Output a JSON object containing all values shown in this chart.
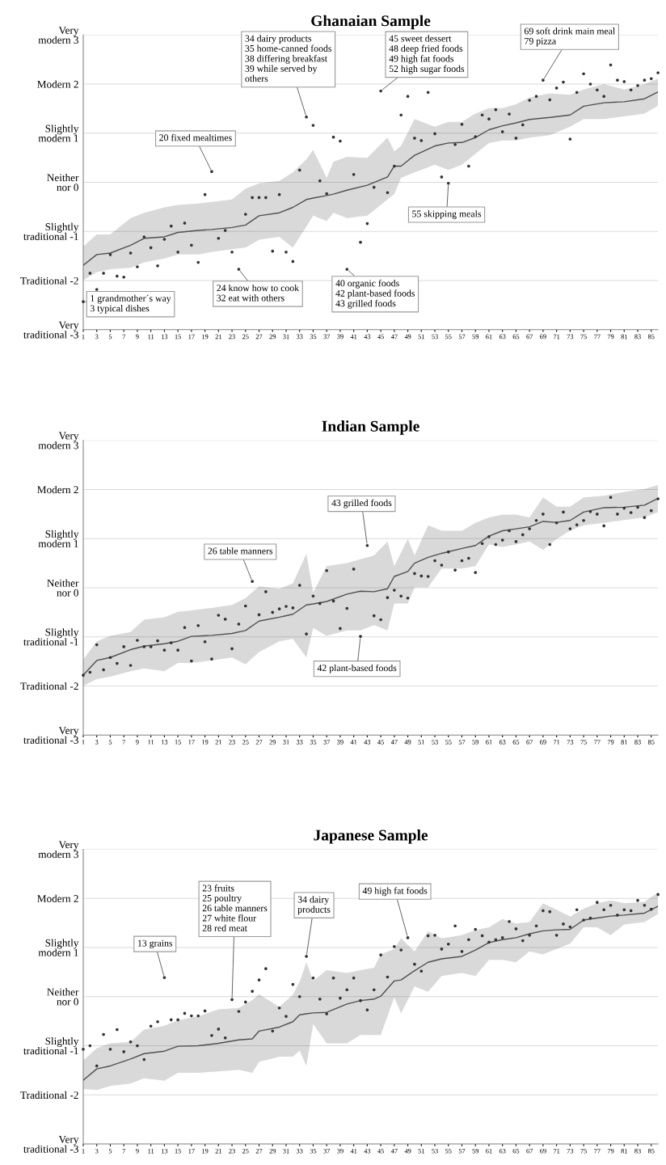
{
  "chart_data": [
    {
      "type": "scatter",
      "title": "Ghanaian Sample",
      "grid": "y",
      "xlim": [
        1,
        86
      ],
      "xticks": [
        1,
        3,
        5,
        7,
        9,
        11,
        13,
        15,
        17,
        19,
        21,
        23,
        25,
        27,
        29,
        31,
        33,
        35,
        37,
        39,
        41,
        43,
        45,
        47,
        49,
        51,
        53,
        55,
        57,
        59,
        61,
        63,
        65,
        67,
        69,
        71,
        73,
        75,
        77,
        79,
        81,
        83,
        85
      ],
      "ylim": [
        -3,
        3
      ],
      "yticks": [
        {
          "value": -3,
          "label": "Very\ntraditional -3"
        },
        {
          "value": -2,
          "label": "Traditional -2"
        },
        {
          "value": -1,
          "label": "Slightly\ntraditional -1"
        },
        {
          "value": 0,
          "label": "Neither\nnor 0"
        },
        {
          "value": 1,
          "label": "Slightly\nmodern 1"
        },
        {
          "value": 2,
          "label": "Modern 2"
        },
        {
          "value": 3,
          "label": "Very\nmodern 3"
        }
      ],
      "x": [
        1,
        2,
        3,
        4,
        5,
        6,
        7,
        8,
        9,
        10,
        11,
        12,
        13,
        14,
        15,
        16,
        17,
        18,
        19,
        20,
        21,
        22,
        23,
        24,
        25,
        26,
        27,
        28,
        29,
        30,
        31,
        32,
        33,
        34,
        35,
        36,
        37,
        38,
        39,
        40,
        41,
        42,
        43,
        44,
        45,
        46,
        47,
        48,
        49,
        50,
        51,
        52,
        53,
        54,
        55,
        56,
        57,
        58,
        59,
        60,
        61,
        62,
        63,
        64,
        65,
        66,
        67,
        68,
        69,
        70,
        71,
        72,
        73,
        74,
        75,
        76,
        77,
        78,
        79,
        80,
        81,
        82,
        83,
        84,
        85,
        86
      ],
      "series": [
        {
          "type": "line",
          "color": "#505050",
          "x": [
            1,
            3,
            5,
            8,
            10,
            13,
            15,
            18,
            20,
            23,
            25,
            27,
            30,
            32,
            34,
            35,
            37,
            38,
            40,
            43,
            46,
            47,
            48,
            50,
            53,
            55,
            57,
            59,
            61,
            63,
            65,
            67,
            70,
            73,
            75,
            78,
            81,
            84,
            86
          ],
          "values": [
            -1.69,
            -1.47,
            -1.44,
            -1.28,
            -1.14,
            -1.11,
            -1.02,
            -0.98,
            -0.96,
            -0.92,
            -0.87,
            -0.68,
            -0.62,
            -0.51,
            -0.35,
            -0.32,
            -0.27,
            -0.24,
            -0.16,
            -0.06,
            0.11,
            0.33,
            0.33,
            0.55,
            0.74,
            0.8,
            0.81,
            0.91,
            1.07,
            1.15,
            1.21,
            1.28,
            1.32,
            1.37,
            1.55,
            1.62,
            1.64,
            1.7,
            1.84
          ],
          "lower": [
            -1.99,
            -1.83,
            -1.77,
            -1.74,
            -1.63,
            -1.55,
            -1.47,
            -1.47,
            -1.42,
            -1.36,
            -1.33,
            -1.17,
            -1.11,
            -1.33,
            -0.9,
            -0.68,
            -0.79,
            -0.62,
            -0.73,
            -0.68,
            -0.35,
            -0.24,
            0.09,
            0.2,
            0.36,
            0.25,
            0.36,
            0.58,
            0.8,
            0.85,
            0.85,
            0.91,
            0.96,
            1.13,
            1.29,
            1.29,
            1.34,
            1.4,
            1.56
          ],
          "upper": [
            -1.31,
            -1.06,
            -1.06,
            -0.73,
            -0.62,
            -0.51,
            -0.46,
            -0.43,
            -0.4,
            -0.35,
            -0.13,
            -0.02,
            0.03,
            0.2,
            0.47,
            0.66,
            0.09,
            0.42,
            0.52,
            0.5,
            0.91,
            0.63,
            0.74,
            1.29,
            1.13,
            1.23,
            1.23,
            1.4,
            1.51,
            1.51,
            1.59,
            1.73,
            1.81,
            1.78,
            1.89,
            2.0,
            1.89,
            2.0,
            2.11
          ]
        },
        {
          "color": "#333333",
          "marker": "circle",
          "values": [
            -2.43,
            -1.85,
            -2.18,
            -1.85,
            -1.47,
            -1.91,
            -1.93,
            -1.44,
            -1.72,
            -1.11,
            -1.33,
            -1.7,
            -1.16,
            -0.89,
            -1.42,
            -0.83,
            -1.28,
            -1.63,
            -0.25,
            0.22,
            -1.14,
            -0.98,
            -1.42,
            -1.77,
            -0.65,
            -0.31,
            -0.31,
            -0.31,
            -1.4,
            -0.25,
            -1.42,
            -1.61,
            0.25,
            1.33,
            1.16,
            0.03,
            -0.23,
            0.92,
            0.84,
            -1.77,
            0.16,
            -1.22,
            -0.84,
            -0.1,
            1.86,
            -0.21,
            0.33,
            1.37,
            1.75,
            0.9,
            0.85,
            1.83,
            0.99,
            0.11,
            -0.02,
            0.77,
            1.18,
            0.33,
            0.93,
            1.37,
            1.29,
            1.48,
            1.03,
            1.39,
            0.9,
            1.17,
            1.67,
            1.75,
            2.08,
            1.68,
            1.92,
            2.04,
            0.88,
            1.83,
            2.21,
            2.0,
            1.88,
            1.75,
            2.39,
            2.08,
            2.05,
            1.88,
            1.97,
            2.08,
            2.11,
            2.23
          ]
        }
      ],
      "annotations": [
        {
          "text": "34 dairy products\n35 home-canned foods\n38 differing breakfast\n39 while served by\nothers",
          "x": 34,
          "y": 1.33
        },
        {
          "text": "45 sweet dessert\n48 deep fried foods\n49 high fat foods\n52 high sugar foods",
          "x": 45,
          "y": 1.86
        },
        {
          "text": "69 soft drink main meal\n79 pizza",
          "x": 69,
          "y": 2.08
        },
        {
          "text": "20 fixed mealtimes",
          "x": 20,
          "y": 0.22
        },
        {
          "text": "55 skipping meals",
          "x": 55,
          "y": -0.02
        },
        {
          "text": "24 know how to cook\n32 eat with others",
          "x": 24,
          "y": -1.77
        },
        {
          "text": "40 organic foods\n42 plant-based foods\n43 grilled foods",
          "x": 40,
          "y": -1.77
        },
        {
          "text": "1 grandmother´s way\n3 typical dishes",
          "x": 1,
          "y": -2.43
        }
      ]
    },
    {
      "type": "scatter",
      "title": "Indian Sample",
      "grid": "y",
      "xlim": [
        1,
        86
      ],
      "xticks": [
        1,
        3,
        5,
        7,
        9,
        11,
        13,
        15,
        17,
        19,
        21,
        23,
        25,
        27,
        29,
        31,
        33,
        35,
        37,
        39,
        41,
        43,
        45,
        47,
        49,
        51,
        53,
        55,
        57,
        59,
        61,
        63,
        65,
        67,
        69,
        71,
        73,
        75,
        77,
        79,
        81,
        83,
        85
      ],
      "ylim": [
        -3,
        3
      ],
      "yticks": [
        {
          "value": -3,
          "label": "Very\ntraditional -3"
        },
        {
          "value": -2,
          "label": "Traditional -2"
        },
        {
          "value": -1,
          "label": "Slightly\ntraditional -1"
        },
        {
          "value": 0,
          "label": "Neither\nnor 0"
        },
        {
          "value": 1,
          "label": "Slightly\nmodern 1"
        },
        {
          "value": 2,
          "label": "Modern 2"
        },
        {
          "value": 3,
          "label": "Very\nmodern 3"
        }
      ],
      "x": [
        1,
        2,
        3,
        4,
        5,
        6,
        7,
        8,
        9,
        10,
        11,
        12,
        13,
        14,
        15,
        16,
        17,
        18,
        19,
        20,
        21,
        22,
        23,
        24,
        25,
        26,
        27,
        28,
        29,
        30,
        31,
        32,
        33,
        34,
        35,
        36,
        37,
        38,
        39,
        40,
        41,
        42,
        43,
        44,
        45,
        46,
        47,
        48,
        49,
        50,
        51,
        52,
        53,
        54,
        55,
        56,
        57,
        58,
        59,
        60,
        61,
        62,
        63,
        64,
        65,
        66,
        67,
        68,
        69,
        70,
        71,
        72,
        73,
        74,
        75,
        76,
        77,
        78,
        79,
        80,
        81,
        82,
        83,
        84,
        85,
        86
      ],
      "series": [
        {
          "type": "line",
          "color": "#505050",
          "x": [
            1,
            3,
            5,
            8,
            10,
            13,
            15,
            17,
            20,
            23,
            25,
            27,
            30,
            32,
            34,
            35,
            37,
            40,
            42,
            44,
            46,
            47,
            49,
            50,
            52,
            54,
            57,
            59,
            61,
            63,
            65,
            67,
            69,
            71,
            73,
            75,
            78,
            81,
            84,
            86
          ],
          "values": [
            -1.78,
            -1.48,
            -1.42,
            -1.26,
            -1.19,
            -1.14,
            -1.09,
            -0.99,
            -0.97,
            -0.93,
            -0.87,
            -0.68,
            -0.6,
            -0.54,
            -0.35,
            -0.33,
            -0.28,
            -0.13,
            -0.07,
            -0.08,
            -0.02,
            0.23,
            0.33,
            0.5,
            0.62,
            0.7,
            0.8,
            0.86,
            1.05,
            1.16,
            1.2,
            1.24,
            1.35,
            1.33,
            1.37,
            1.54,
            1.63,
            1.64,
            1.68,
            1.82
          ],
          "lower": [
            -2.0,
            -1.86,
            -1.81,
            -1.7,
            -1.64,
            -1.7,
            -1.53,
            -1.53,
            -1.48,
            -1.42,
            -1.56,
            -1.31,
            -1.09,
            -1.04,
            -1.42,
            -0.82,
            -0.98,
            -0.87,
            -0.87,
            -0.76,
            -0.87,
            -0.32,
            -0.32,
            0.01,
            0.01,
            0.39,
            0.39,
            0.44,
            0.88,
            0.83,
            0.88,
            0.94,
            0.77,
            0.99,
            1.16,
            1.27,
            1.32,
            1.38,
            1.43,
            1.54
          ],
          "upper": [
            -1.46,
            -1.09,
            -0.98,
            -0.9,
            -0.65,
            -0.6,
            -0.49,
            -0.46,
            -0.41,
            -0.35,
            -0.21,
            0.03,
            -0.02,
            0.09,
            0.69,
            -0.1,
            0.44,
            0.5,
            0.58,
            0.66,
            0.94,
            0.44,
            0.99,
            0.66,
            1.27,
            1.16,
            1.16,
            1.32,
            1.43,
            1.49,
            1.49,
            1.43,
            1.84,
            1.65,
            1.65,
            1.84,
            1.87,
            1.95,
            2.01,
            2.09
          ]
        },
        {
          "color": "#333333",
          "marker": "circle",
          "values": [
            -1.78,
            -1.72,
            -1.16,
            -1.67,
            -1.42,
            -1.54,
            -1.2,
            -1.58,
            -1.07,
            -1.2,
            -1.2,
            -1.08,
            -1.27,
            -1.12,
            -1.27,
            -0.81,
            -1.49,
            -0.77,
            -1.1,
            -1.45,
            -0.56,
            -0.64,
            -1.24,
            -0.74,
            -0.37,
            0.13,
            -0.55,
            -0.08,
            -0.5,
            -0.43,
            -0.38,
            -0.41,
            0.05,
            -0.94,
            -0.17,
            -0.32,
            0.35,
            -0.27,
            -0.83,
            -0.42,
            0.38,
            -0.99,
            0.86,
            -0.57,
            -0.65,
            -0.2,
            -0.05,
            -0.17,
            -0.21,
            0.29,
            0.24,
            0.23,
            0.55,
            0.46,
            0.73,
            0.36,
            0.55,
            0.6,
            0.31,
            0.9,
            1.04,
            0.88,
            0.97,
            1.16,
            0.94,
            1.08,
            1.2,
            1.37,
            1.5,
            0.88,
            1.32,
            1.54,
            1.2,
            1.28,
            1.37,
            1.55,
            1.5,
            1.26,
            1.84,
            1.5,
            1.62,
            1.53,
            1.64,
            1.43,
            1.57,
            1.81
          ]
        }
      ],
      "annotations": [
        {
          "text": "26 table manners",
          "x": 26,
          "y": 0.13
        },
        {
          "text": "43 grilled foods",
          "x": 43,
          "y": 0.86
        },
        {
          "text": "42 plant-based foods",
          "x": 42,
          "y": -0.99
        }
      ]
    },
    {
      "type": "scatter",
      "title": "Japanese Sample",
      "grid": "y",
      "xlim": [
        1,
        86
      ],
      "xticks": [
        1,
        3,
        5,
        7,
        9,
        11,
        13,
        15,
        17,
        19,
        21,
        23,
        25,
        27,
        29,
        31,
        33,
        35,
        37,
        39,
        41,
        43,
        45,
        47,
        49,
        51,
        53,
        55,
        57,
        59,
        61,
        63,
        65,
        67,
        69,
        71,
        73,
        75,
        77,
        79,
        81,
        83,
        85
      ],
      "ylim": [
        -3,
        3
      ],
      "yticks": [
        {
          "value": -3,
          "label": "Very\ntraditional -3"
        },
        {
          "value": -2,
          "label": "Traditional -2"
        },
        {
          "value": -1,
          "label": "Slightly\ntraditional -1"
        },
        {
          "value": 0,
          "label": "Neither\nnor 0"
        },
        {
          "value": 1,
          "label": "Slightly\nmodern 1"
        },
        {
          "value": 2,
          "label": "Modern 2"
        },
        {
          "value": 3,
          "label": "Very\nmodern 3"
        }
      ],
      "x": [
        1,
        2,
        3,
        4,
        5,
        6,
        7,
        8,
        9,
        10,
        11,
        12,
        13,
        14,
        15,
        16,
        17,
        18,
        19,
        20,
        21,
        22,
        23,
        24,
        25,
        26,
        27,
        28,
        29,
        30,
        31,
        32,
        33,
        34,
        35,
        36,
        37,
        38,
        39,
        40,
        41,
        42,
        43,
        44,
        45,
        46,
        47,
        48,
        49,
        50,
        51,
        52,
        53,
        54,
        55,
        56,
        57,
        58,
        59,
        60,
        61,
        62,
        63,
        64,
        65,
        66,
        67,
        68,
        69,
        70,
        71,
        72,
        73,
        74,
        75,
        76,
        77,
        78,
        79,
        80,
        81,
        82,
        83,
        84,
        85,
        86
      ],
      "series": [
        {
          "type": "line",
          "color": "#505050",
          "x": [
            1,
            3,
            5,
            8,
            10,
            13,
            15,
            18,
            21,
            24,
            26,
            27,
            30,
            32,
            33,
            34,
            35,
            37,
            40,
            42,
            44,
            45,
            47,
            48,
            50,
            52,
            54,
            57,
            59,
            61,
            63,
            65,
            67,
            69,
            71,
            73,
            75,
            77,
            79,
            81,
            84,
            86
          ],
          "values": [
            -1.7,
            -1.47,
            -1.41,
            -1.27,
            -1.16,
            -1.11,
            -1.01,
            -1.0,
            -0.95,
            -0.88,
            -0.86,
            -0.7,
            -0.62,
            -0.51,
            -0.37,
            -0.35,
            -0.33,
            -0.32,
            -0.15,
            -0.08,
            -0.05,
            0.01,
            0.32,
            0.34,
            0.53,
            0.7,
            0.77,
            0.82,
            0.95,
            1.1,
            1.16,
            1.2,
            1.28,
            1.34,
            1.36,
            1.37,
            1.56,
            1.6,
            1.64,
            1.66,
            1.7,
            1.84
          ],
          "lower": [
            -1.88,
            -1.9,
            -1.82,
            -1.77,
            -1.66,
            -1.71,
            -1.55,
            -1.55,
            -1.52,
            -1.49,
            -1.55,
            -1.33,
            -1.22,
            -1.22,
            -1.1,
            -1.41,
            -0.56,
            -0.95,
            -0.95,
            -0.78,
            -0.78,
            -0.78,
            -0.01,
            -0.34,
            0.21,
            0.1,
            0.42,
            0.48,
            0.42,
            0.75,
            0.75,
            0.7,
            0.92,
            0.86,
            0.97,
            1.08,
            1.41,
            1.41,
            1.25,
            1.47,
            1.52,
            1.68
          ],
          "upper": [
            -1.3,
            -1.05,
            -0.95,
            -0.92,
            -0.67,
            -0.59,
            -0.48,
            -0.4,
            -0.26,
            -0.23,
            -0.07,
            0.05,
            -0.21,
            0.04,
            0.3,
            0.7,
            0.32,
            0.54,
            0.48,
            0.54,
            0.59,
            0.86,
            0.97,
            1.19,
            0.92,
            1.33,
            1.19,
            1.25,
            1.36,
            1.41,
            1.58,
            1.49,
            1.52,
            1.9,
            1.77,
            1.63,
            1.79,
            1.9,
            1.96,
            1.9,
            1.93,
            2.12
          ]
        },
        {
          "color": "#333333",
          "marker": "circle",
          "values": [
            -1.07,
            -1.0,
            -1.41,
            -0.77,
            -1.07,
            -0.67,
            -1.12,
            -0.92,
            -1.0,
            -1.28,
            -0.6,
            -0.51,
            0.39,
            -0.47,
            -0.47,
            -0.34,
            -0.39,
            -0.39,
            -0.29,
            -0.79,
            -0.66,
            -0.84,
            -0.06,
            -0.3,
            -0.11,
            0.11,
            0.34,
            0.57,
            -0.7,
            -0.23,
            -0.4,
            0.25,
            0.0,
            0.82,
            0.38,
            -0.05,
            -0.35,
            0.38,
            -0.03,
            0.14,
            0.38,
            -0.08,
            -0.27,
            0.14,
            0.85,
            0.4,
            1.02,
            0.95,
            1.2,
            0.66,
            0.52,
            1.24,
            1.25,
            0.97,
            1.07,
            1.44,
            0.92,
            1.16,
            1.37,
            1.24,
            1.11,
            1.16,
            1.2,
            1.53,
            1.38,
            1.14,
            1.25,
            1.44,
            1.75,
            1.73,
            1.25,
            1.48,
            1.42,
            1.77,
            1.56,
            1.6,
            1.92,
            1.77,
            1.86,
            1.66,
            1.77,
            1.75,
            1.96,
            1.86,
            1.78,
            2.08
          ]
        }
      ],
      "annotations": [
        {
          "text": "13 grains",
          "x": 13,
          "y": 0.39
        },
        {
          "text": "23 fruits\n25 poultry\n26 table manners\n27 white flour\n28 red meat",
          "x": 23,
          "y": -0.06
        },
        {
          "text": "34 dairy\nproducts",
          "x": 34,
          "y": 0.82
        },
        {
          "text": "49 high fat foods",
          "x": 49,
          "y": 1.2
        }
      ]
    }
  ]
}
